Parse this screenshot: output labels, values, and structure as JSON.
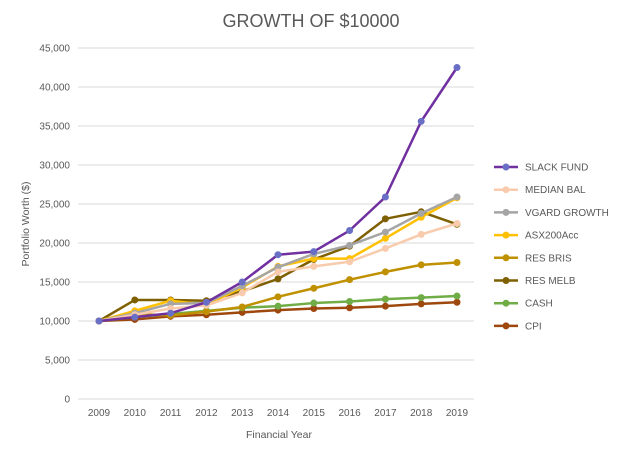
{
  "chart_data": {
    "type": "line",
    "title": "GROWTH OF $10000",
    "xlabel": "Financial Year",
    "ylabel": "Portfolio Worth ($)",
    "x": [
      "2009",
      "2010",
      "2011",
      "2012",
      "2013",
      "2014",
      "2015",
      "2016",
      "2017",
      "2018",
      "2019"
    ],
    "ylim": [
      0,
      45000
    ],
    "yticks": [
      0,
      5000,
      10000,
      15000,
      20000,
      25000,
      30000,
      35000,
      40000,
      45000
    ],
    "ytick_labels": [
      "0",
      "5,000",
      "10,000",
      "15,000",
      "20,000",
      "25,000",
      "30,000",
      "35,000",
      "40,000",
      "45,000"
    ],
    "grid": true,
    "legend_position": "right",
    "series": [
      {
        "name": "SLACK FUND",
        "color": "#7030a0",
        "marker": "#6a6fc6",
        "values": [
          10000,
          10500,
          11000,
          12400,
          15000,
          18500,
          18900,
          21600,
          25900,
          35600,
          42500
        ]
      },
      {
        "name": "MEDIAN BAL",
        "color": "#f8cbad",
        "marker": "#f8cbad",
        "values": [
          10000,
          10800,
          11600,
          12000,
          13600,
          16300,
          17000,
          17600,
          19300,
          21100,
          22500
        ]
      },
      {
        "name": "VGARD GROWTH",
        "color": "#a5a5a5",
        "marker": "#a5a5a5",
        "values": [
          10000,
          11000,
          12200,
          12300,
          14500,
          16900,
          18600,
          19700,
          21400,
          23800,
          25900
        ]
      },
      {
        "name": "ASX200Acc",
        "color": "#ffc000",
        "marker": "#ffc000",
        "values": [
          10000,
          11300,
          12600,
          12100,
          14300,
          17000,
          18000,
          18000,
          20600,
          23300,
          25800
        ]
      },
      {
        "name": "RES BRIS",
        "color": "#bf9000",
        "marker": "#bf9000",
        "values": [
          10000,
          10900,
          10700,
          11200,
          11800,
          13100,
          14200,
          15300,
          16300,
          17200,
          17500
        ]
      },
      {
        "name": "RES MELB",
        "color": "#7f6000",
        "marker": "#7f6000",
        "values": [
          10000,
          12700,
          12700,
          12600,
          13800,
          15400,
          17900,
          19600,
          23100,
          24000,
          22400
        ]
      },
      {
        "name": "CASH",
        "color": "#70ad47",
        "marker": "#70ad47",
        "values": [
          10000,
          10500,
          10900,
          11300,
          11700,
          11900,
          12300,
          12500,
          12800,
          13000,
          13200
        ]
      },
      {
        "name": "CPI",
        "color": "#9e480e",
        "marker": "#9e480e",
        "values": [
          10000,
          10200,
          10600,
          10800,
          11100,
          11400,
          11600,
          11700,
          11900,
          12200,
          12400
        ]
      }
    ]
  }
}
